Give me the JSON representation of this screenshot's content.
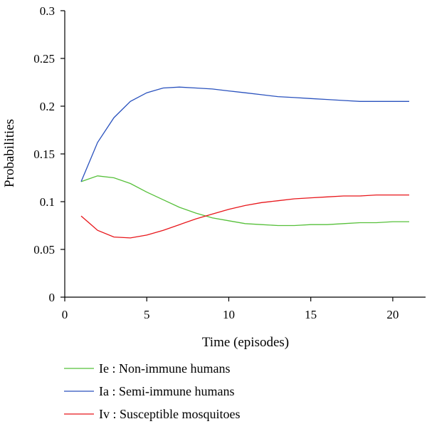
{
  "chart_data": {
    "type": "line",
    "xlabel": "Time (episodes)",
    "ylabel": "Probabilities",
    "xlim": [
      0,
      22
    ],
    "ylim": [
      0,
      0.3
    ],
    "xticks": [
      0,
      5,
      10,
      15,
      20
    ],
    "xtick_labels": [
      "0",
      "5",
      "10",
      "15",
      "20"
    ],
    "yticks": [
      0,
      0.05,
      0.1,
      0.15,
      0.2,
      0.25,
      0.3
    ],
    "ytick_labels": [
      "0",
      "0.05",
      "0.1",
      "0.15",
      "0.2",
      "0.25",
      "0.3"
    ],
    "grid": false,
    "legend_position": "bottom",
    "x": [
      1,
      2,
      3,
      4,
      5,
      6,
      7,
      8,
      9,
      10,
      11,
      12,
      13,
      14,
      15,
      16,
      17,
      18,
      19,
      20,
      21
    ],
    "series": [
      {
        "name": "Ie : Non-immune humans",
        "color": "#56c03a",
        "values": [
          0.121,
          0.127,
          0.125,
          0.119,
          0.11,
          0.102,
          0.094,
          0.088,
          0.083,
          0.08,
          0.077,
          0.076,
          0.075,
          0.075,
          0.076,
          0.076,
          0.077,
          0.078,
          0.078,
          0.079,
          0.079
        ]
      },
      {
        "name": "Ia : Semi-immune humans",
        "color": "#2a52be",
        "values": [
          0.121,
          0.162,
          0.188,
          0.205,
          0.214,
          0.219,
          0.22,
          0.219,
          0.218,
          0.216,
          0.214,
          0.212,
          0.21,
          0.209,
          0.208,
          0.207,
          0.206,
          0.205,
          0.205,
          0.205,
          0.205
        ]
      },
      {
        "name": "Iv : Susceptible mosquitoes",
        "color": "#e8161b",
        "values": [
          0.085,
          0.07,
          0.063,
          0.062,
          0.065,
          0.07,
          0.076,
          0.082,
          0.087,
          0.092,
          0.096,
          0.099,
          0.101,
          0.103,
          0.104,
          0.105,
          0.106,
          0.106,
          0.107,
          0.107,
          0.107
        ]
      }
    ]
  }
}
